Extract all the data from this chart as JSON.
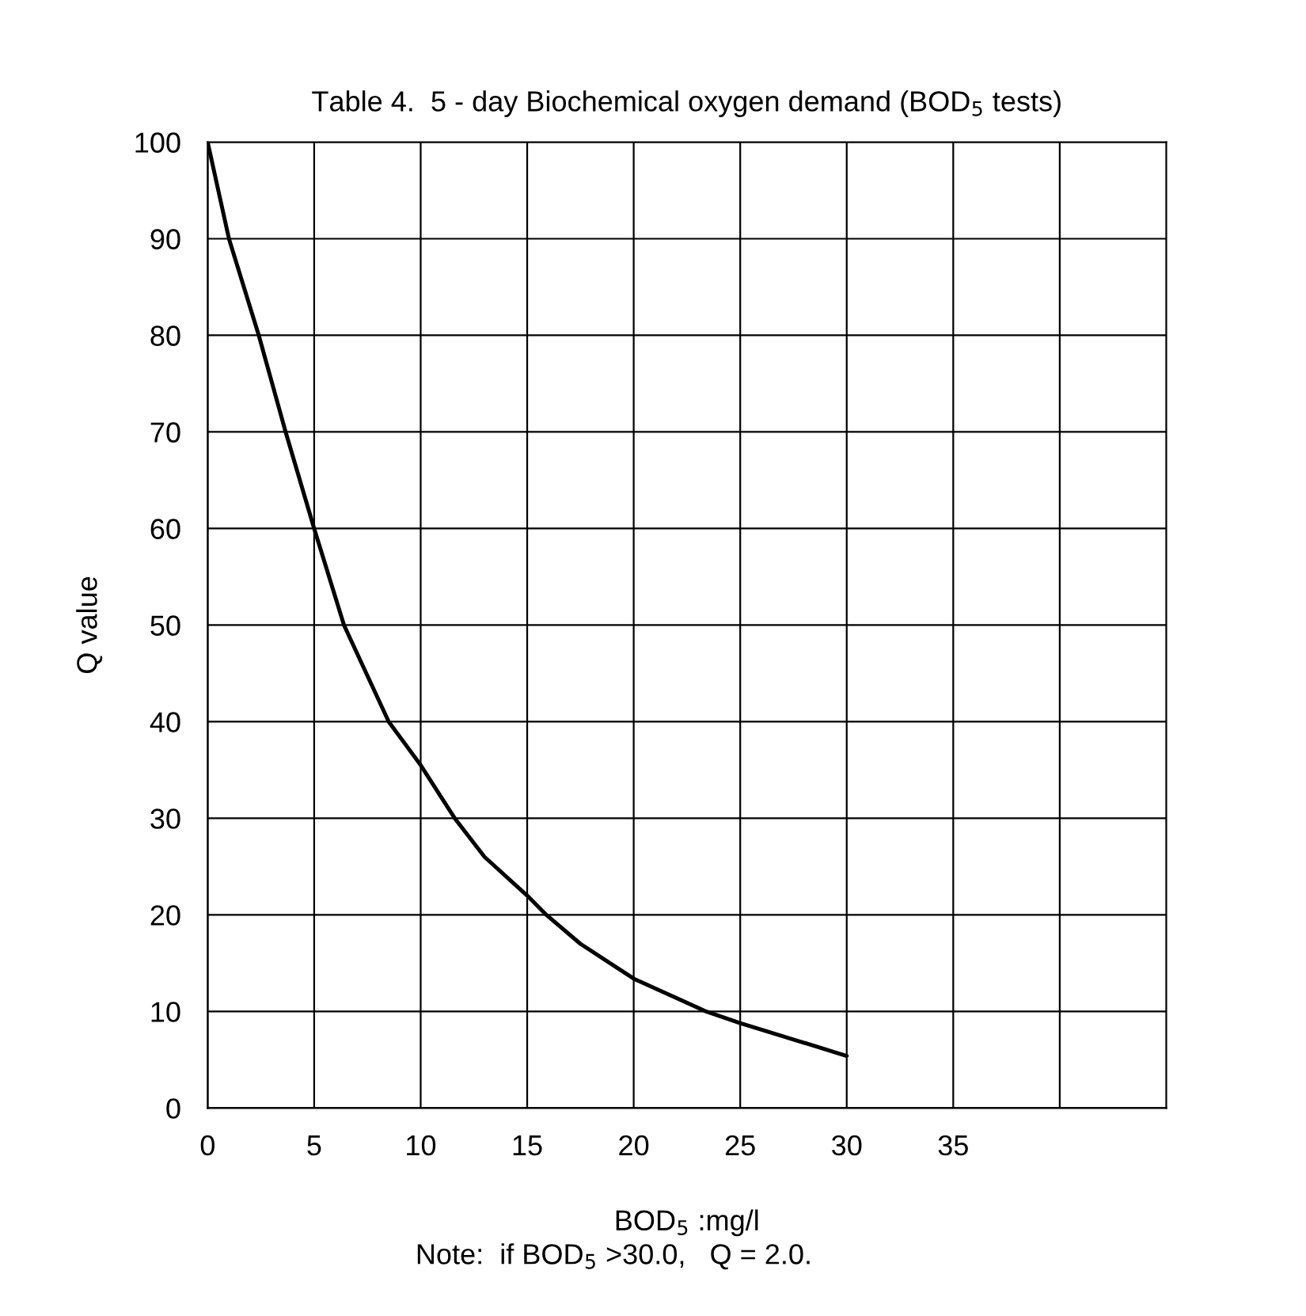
{
  "chart_data": {
    "type": "line",
    "title": "Table 4.  5 - day Biochemical oxygen demand (BOD$_{5}$ tests)",
    "xlabel": "BOD$_{5}$ :mg/l",
    "ylabel": "Q value",
    "annotations": [
      "Note:  if BOD$_{5}$ >30.0,   Q = 2.0."
    ],
    "series": [
      {
        "color": "#000000",
        "x": [
          0,
          1.0,
          2.4,
          3.66,
          5,
          6.4,
          8.5,
          10,
          11.6,
          13,
          15,
          15.9,
          17.5,
          20,
          23.4,
          25,
          27.5,
          30
        ],
        "values": [
          100,
          90,
          80,
          70,
          60,
          50,
          40,
          35.5,
          30,
          26,
          22,
          20,
          17,
          13.4,
          10,
          8.8,
          7.1,
          5.4
        ]
      }
    ],
    "xlim": [
      0,
      45
    ],
    "xticks": [
      0,
      5,
      10,
      15,
      20,
      25,
      30,
      35,
      {
        "value": 40,
        "label": null
      }
    ],
    "ylim": [
      0,
      100
    ],
    "yticks": [
      0,
      10,
      20,
      30,
      40,
      50,
      60,
      70,
      80,
      90,
      100
    ],
    "grid": true,
    "legend": false,
    "marker": "none",
    "line_style": "solid"
  }
}
